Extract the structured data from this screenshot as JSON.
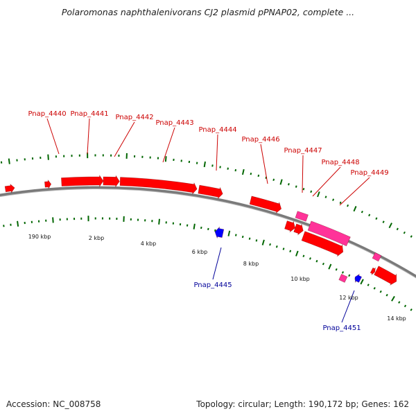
{
  "title": "Polaromonas naphthalenivorans CJ2 plasmid pPNAP02, complete ...",
  "colors": {
    "gene_forward": "#ff0000",
    "gene_reverse": "#0000ff",
    "gene_magenta": "#ff3399",
    "label_forward": "#cc0000",
    "label_reverse": "#000099",
    "backbone": "#7a7a7a",
    "ticks": "#006600"
  },
  "gene_labels_above": [
    "Pnap_4440",
    "Pnap_4441",
    "Pnap_4442",
    "Pnap_4443",
    "Pnap_4444",
    "Pnap_4446",
    "Pnap_4447",
    "Pnap_4448",
    "Pnap_4449"
  ],
  "gene_labels_below": [
    "Pnap_4445",
    "Pnap_4451"
  ],
  "scale_labels": [
    "190 kbp",
    "2 kbp",
    "4 kbp",
    "6 kbp",
    "8 kbp",
    "10 kbp",
    "12 kbp",
    "14 kbp"
  ],
  "footer": {
    "accession": "Accession: NC_008758",
    "topology": "Topology: circular; Length: 190,172 bp; Genes: 162"
  }
}
